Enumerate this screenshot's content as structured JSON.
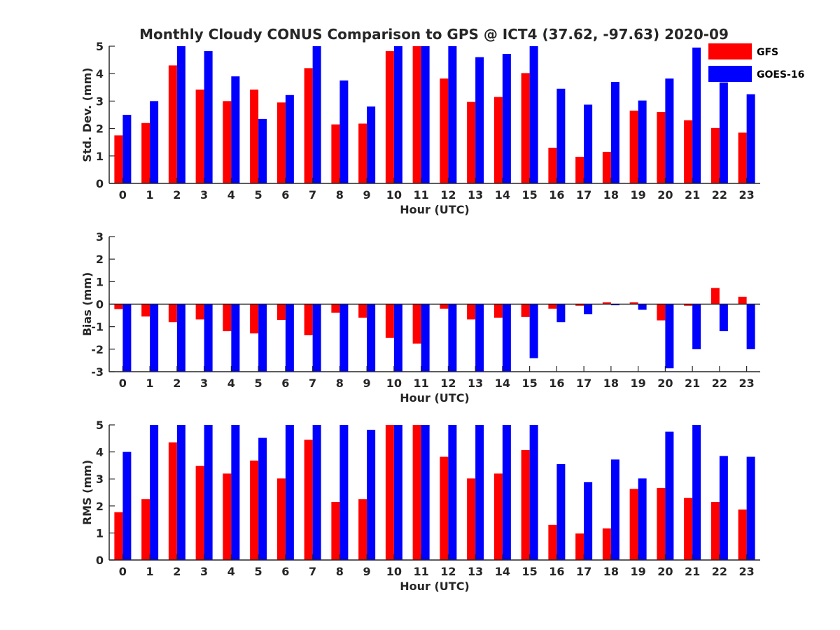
{
  "title": "Monthly Cloudy CONUS Comparison to GPS @ ICT4 (37.62, -97.63) 2020-09",
  "colors": {
    "gfs": "#ff0000",
    "goes": "#0000ff",
    "axis": "#262626"
  },
  "legend": [
    "GFS",
    "GOES-16"
  ],
  "chart_data": [
    {
      "type": "bar",
      "ylabel": "Std. Dev. (mm)",
      "xlabel": "Hour (UTC)",
      "ylim": [
        0,
        5
      ],
      "yticks": [
        0,
        1,
        2,
        3,
        4,
        5
      ],
      "categories": [
        "0",
        "1",
        "2",
        "3",
        "4",
        "5",
        "6",
        "7",
        "8",
        "9",
        "10",
        "11",
        "12",
        "13",
        "14",
        "15",
        "16",
        "17",
        "18",
        "19",
        "20",
        "21",
        "22",
        "23"
      ],
      "series": [
        {
          "name": "GFS",
          "values": [
            1.75,
            2.2,
            4.3,
            3.42,
            3.0,
            3.42,
            2.95,
            4.2,
            2.15,
            2.18,
            4.82,
            5.0,
            3.82,
            2.97,
            3.15,
            4.02,
            1.3,
            0.97,
            1.15,
            2.65,
            2.6,
            2.3,
            2.02,
            1.85
          ]
        },
        {
          "name": "GOES-16",
          "values": [
            2.5,
            3.0,
            5.0,
            4.82,
            3.9,
            2.35,
            3.22,
            5.0,
            3.75,
            2.8,
            5.0,
            5.0,
            5.0,
            4.6,
            4.72,
            5.0,
            3.45,
            2.87,
            3.7,
            3.02,
            3.82,
            4.95,
            3.68,
            3.25
          ]
        }
      ]
    },
    {
      "type": "bar",
      "ylabel": "Bias (mm)",
      "xlabel": "Hour (UTC)",
      "ylim": [
        -3,
        3
      ],
      "yticks": [
        -3,
        -2,
        -1,
        0,
        1,
        2,
        3
      ],
      "categories": [
        "0",
        "1",
        "2",
        "3",
        "4",
        "5",
        "6",
        "7",
        "8",
        "9",
        "10",
        "11",
        "12",
        "13",
        "14",
        "15",
        "16",
        "17",
        "18",
        "19",
        "20",
        "21",
        "22",
        "23"
      ],
      "series": [
        {
          "name": "GFS",
          "values": [
            -0.22,
            -0.55,
            -0.8,
            -0.68,
            -1.2,
            -1.3,
            -0.7,
            -1.38,
            -0.38,
            -0.6,
            -1.5,
            -1.75,
            -0.2,
            -0.68,
            -0.6,
            -0.57,
            -0.2,
            -0.07,
            0.08,
            0.08,
            -0.72,
            -0.07,
            0.72,
            0.33
          ]
        },
        {
          "name": "GOES-16",
          "values": [
            -3.0,
            -3.0,
            -3.0,
            -3.0,
            -3.0,
            -3.0,
            -3.0,
            -3.0,
            -3.0,
            -3.0,
            -3.0,
            -3.0,
            -3.0,
            -3.0,
            -3.0,
            -2.4,
            -0.8,
            -0.45,
            -0.05,
            -0.25,
            -2.85,
            -2.0,
            -1.2,
            -2.0
          ]
        }
      ]
    },
    {
      "type": "bar",
      "ylabel": "RMS (mm)",
      "xlabel": "Hour (UTC)",
      "ylim": [
        0,
        5
      ],
      "yticks": [
        0,
        1,
        2,
        3,
        4,
        5
      ],
      "categories": [
        "0",
        "1",
        "2",
        "3",
        "4",
        "5",
        "6",
        "7",
        "8",
        "9",
        "10",
        "11",
        "12",
        "13",
        "14",
        "15",
        "16",
        "17",
        "18",
        "19",
        "20",
        "21",
        "22",
        "23"
      ],
      "series": [
        {
          "name": "GFS",
          "values": [
            1.77,
            2.25,
            4.35,
            3.48,
            3.2,
            3.68,
            3.02,
            4.45,
            2.15,
            2.25,
            5.0,
            5.0,
            3.82,
            3.02,
            3.2,
            4.07,
            1.3,
            0.98,
            1.17,
            2.63,
            2.67,
            2.3,
            2.15,
            1.87
          ]
        },
        {
          "name": "GOES-16",
          "values": [
            4.0,
            5.0,
            5.0,
            5.0,
            5.0,
            4.52,
            5.0,
            5.0,
            5.0,
            4.82,
            5.0,
            5.0,
            5.0,
            5.0,
            5.0,
            5.0,
            3.55,
            2.88,
            3.72,
            3.02,
            4.75,
            5.0,
            3.85,
            3.82
          ]
        }
      ]
    }
  ]
}
